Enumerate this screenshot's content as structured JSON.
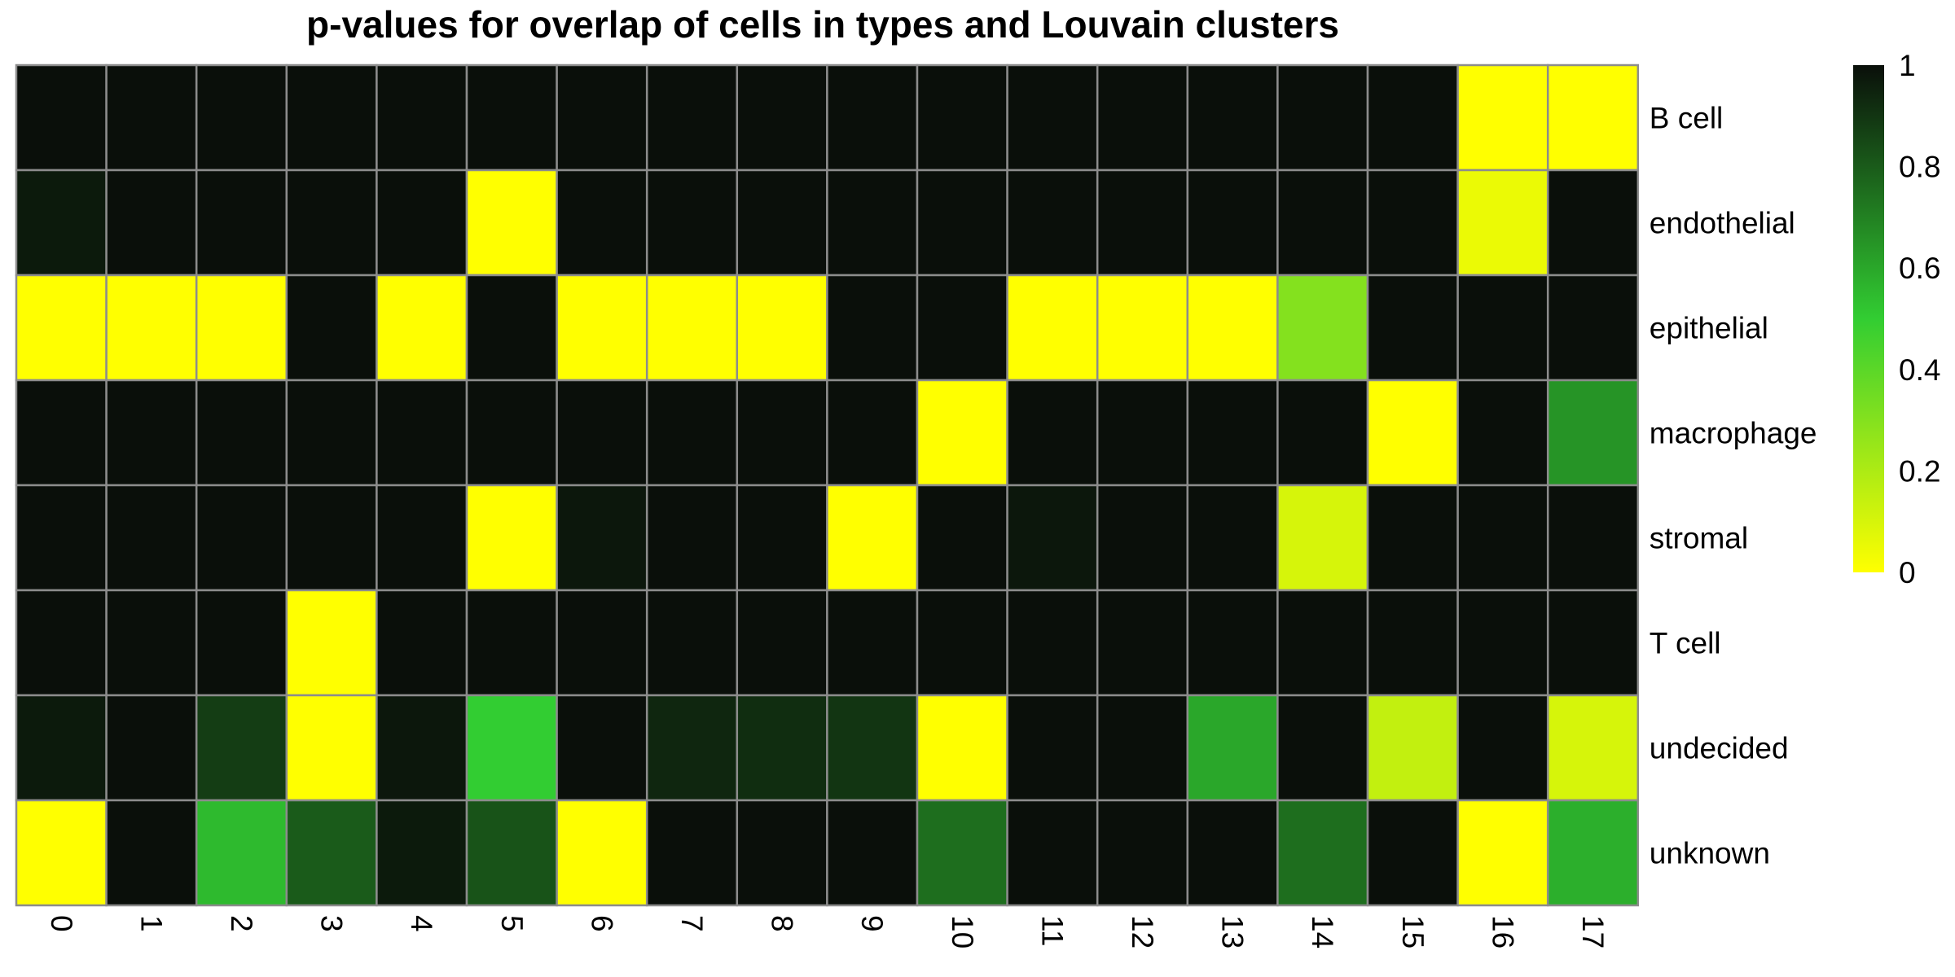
{
  "chart_data": {
    "type": "heatmap",
    "title": "p-values for overlap of cells in types and Louvain clusters",
    "x_categories": [
      "0",
      "1",
      "2",
      "3",
      "4",
      "5",
      "6",
      "7",
      "8",
      "9",
      "10",
      "11",
      "12",
      "13",
      "14",
      "15",
      "16",
      "17"
    ],
    "y_categories": [
      "B cell",
      "endothelial",
      "epithelial",
      "macrophage",
      "stromal",
      "T cell",
      "undecided",
      "unknown"
    ],
    "values": [
      [
        1,
        1,
        1,
        1,
        1,
        1,
        1,
        1,
        1,
        1,
        1,
        1,
        1,
        1,
        1,
        1,
        0,
        0
      ],
      [
        0.97,
        1,
        1,
        1,
        1,
        0,
        1,
        1,
        1,
        1,
        1,
        1,
        1,
        1,
        1,
        1,
        0.05,
        1
      ],
      [
        0,
        0,
        0,
        1,
        0,
        1,
        0,
        0,
        0,
        1,
        1,
        0,
        0,
        0,
        0.3,
        1,
        1,
        1
      ],
      [
        1,
        1,
        1,
        1,
        1,
        1,
        1,
        1,
        1,
        1,
        0,
        1,
        1,
        1,
        1,
        0,
        1,
        0.65
      ],
      [
        1,
        1,
        1,
        1,
        1,
        0,
        0.98,
        1,
        1,
        0,
        1,
        0.98,
        1,
        1,
        0.1,
        1,
        1,
        1
      ],
      [
        1,
        1,
        1,
        0,
        1,
        1,
        1,
        1,
        1,
        1,
        1,
        1,
        1,
        1,
        1,
        1,
        1,
        1
      ],
      [
        0.97,
        1,
        0.88,
        0,
        0.98,
        0.5,
        1,
        0.94,
        0.92,
        0.9,
        0,
        1,
        1,
        0.6,
        1,
        0.15,
        1,
        0.1
      ],
      [
        0,
        1,
        0.55,
        0.8,
        0.97,
        0.82,
        0,
        1,
        1,
        1,
        0.75,
        1,
        1,
        1,
        0.75,
        1,
        0,
        0.58
      ]
    ],
    "colorbar": {
      "min": 0,
      "max": 1,
      "ticks": [
        {
          "value": 0,
          "label": "0"
        },
        {
          "value": 0.2,
          "label": "0.2"
        },
        {
          "value": 0.4,
          "label": "0.4"
        },
        {
          "value": 0.6,
          "label": "0.6"
        },
        {
          "value": 0.8,
          "label": "0.8"
        },
        {
          "value": 1,
          "label": "1"
        }
      ],
      "colors": [
        "#ffff00",
        "#32cd32",
        "#0a0f0a"
      ]
    },
    "grid_color": "#8c8c8c"
  }
}
